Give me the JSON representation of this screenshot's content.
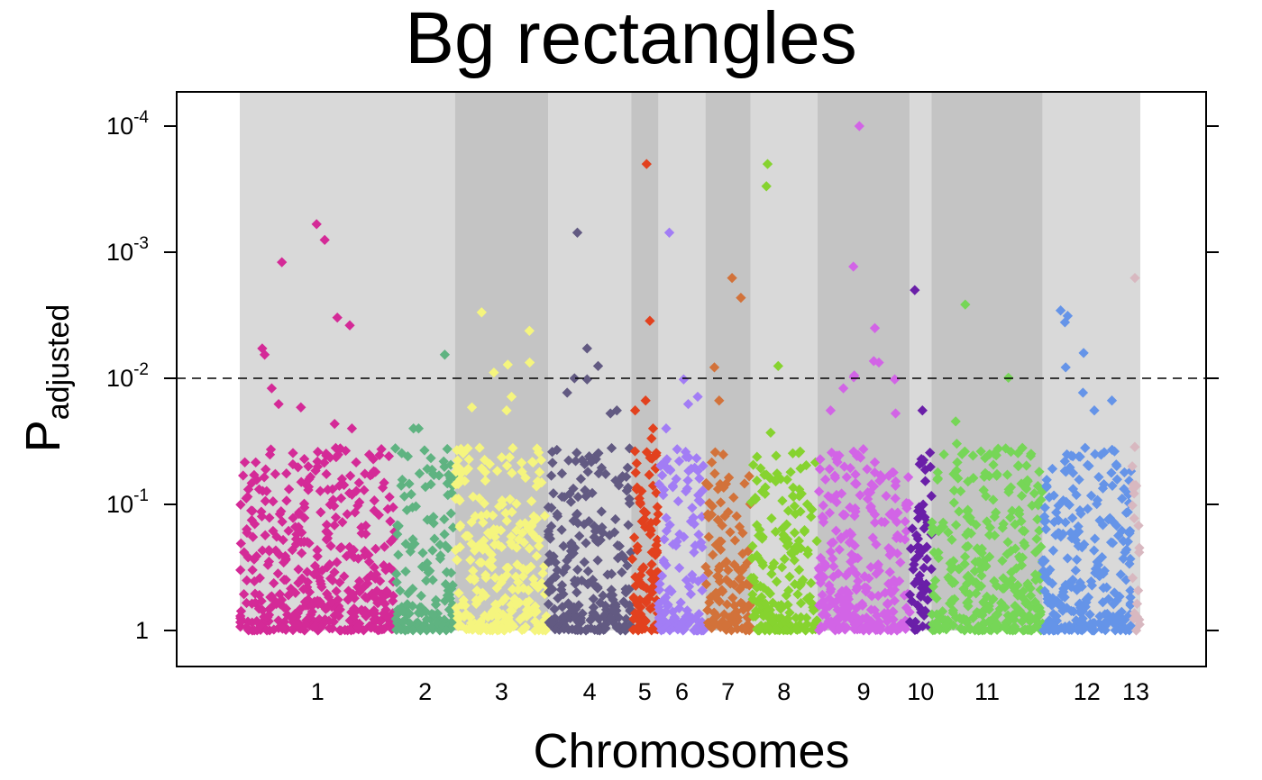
{
  "chart_data": {
    "type": "scatter",
    "title": "Bg rectangles",
    "xlabel": "Chromosomes",
    "ylabel": {
      "main": "P",
      "subscript": "adjusted"
    },
    "y_scale": "log, reversed (smaller P plotted higher)",
    "ylim": [
      1,
      5e-05
    ],
    "y_ticks": [
      {
        "base": "10",
        "exp": "-4",
        "value": 0.0001
      },
      {
        "base": "10",
        "exp": "-3",
        "value": 0.001
      },
      {
        "base": "10",
        "exp": "-2",
        "value": 0.01
      },
      {
        "base": "10",
        "exp": "-1",
        "value": 0.1
      },
      {
        "base": "1",
        "exp": "",
        "value": 1
      }
    ],
    "threshold": {
      "value": 0.01,
      "style": "dashed"
    },
    "background_bands": true,
    "grid": false,
    "legend": "none",
    "chromosomes": [
      {
        "label": "1",
        "length": 172,
        "color": "#D42A97",
        "band": "#D9D9D9",
        "n_points": 430,
        "top_values": [
          0.0006,
          0.0008,
          0.0012,
          0.0033,
          0.0038,
          0.0058,
          0.0065,
          0.012,
          0.016,
          0.017,
          0.023,
          0.025
        ]
      },
      {
        "label": "2",
        "length": 66,
        "color": "#5FB381",
        "band": "#D9D9D9",
        "n_points": 150,
        "top_values": [
          0.0065,
          0.025,
          0.025
        ]
      },
      {
        "label": "3",
        "length": 103,
        "color": "#F5F57E",
        "band": "#C4C4C4",
        "n_points": 260,
        "top_values": [
          0.003,
          0.0042,
          0.0075,
          0.0078,
          0.009,
          0.014,
          0.017,
          0.018
        ]
      },
      {
        "label": "4",
        "length": 92,
        "color": "#625A82",
        "band": "#D9D9D9",
        "n_points": 240,
        "top_values": [
          0.0007,
          0.0058,
          0.008,
          0.01,
          0.0102,
          0.013,
          0.018,
          0.019
        ]
      },
      {
        "label": "5",
        "length": 30,
        "color": "#E2411E",
        "band": "#C4C4C4",
        "n_points": 100,
        "top_values": [
          0.0002,
          0.0035,
          0.015,
          0.018,
          0.025,
          0.03
        ]
      },
      {
        "label": "6",
        "length": 52,
        "color": "#A27DF5",
        "band": "#D9D9D9",
        "n_points": 130,
        "top_values": [
          0.0007,
          0.0102,
          0.014,
          0.016,
          0.025
        ]
      },
      {
        "label": "7",
        "length": 50,
        "color": "#D2723A",
        "band": "#C4C4C4",
        "n_points": 120,
        "top_values": [
          0.0016,
          0.0023,
          0.0082,
          0.015
        ]
      },
      {
        "label": "8",
        "length": 74,
        "color": "#86D32F",
        "band": "#D9D9D9",
        "n_points": 190,
        "top_values": [
          0.0002,
          0.0003,
          0.008,
          0.027
        ]
      },
      {
        "label": "9",
        "length": 102,
        "color": "#D264E6",
        "band": "#C4C4C4",
        "n_points": 270,
        "top_values": [
          0.0001,
          0.0013,
          0.004,
          0.0073,
          0.0075,
          0.0095,
          0.0098,
          0.0102,
          0.012,
          0.018,
          0.019
        ]
      },
      {
        "label": "10",
        "length": 24,
        "color": "#6A1FA8",
        "band": "#D9D9D9",
        "n_points": 60,
        "top_values": [
          0.002,
          0.018,
          0.048
        ]
      },
      {
        "label": "11",
        "length": 123,
        "color": "#76D657",
        "band": "#C4C4C4",
        "n_points": 320,
        "top_values": [
          0.0026,
          0.0099,
          0.022,
          0.033,
          0.036
        ]
      },
      {
        "label": "12",
        "length": 98,
        "color": "#6594E8",
        "band": "#D9D9D9",
        "n_points": 260,
        "top_values": [
          0.0029,
          0.0032,
          0.0036,
          0.0063,
          0.0082,
          0.013,
          0.015,
          0.018
        ]
      },
      {
        "label": "13",
        "length": 10,
        "color": "#D8B8C0",
        "band": "#D9D9D9",
        "n_points": 20,
        "top_values": [
          0.0016,
          0.035,
          0.07
        ]
      }
    ]
  }
}
